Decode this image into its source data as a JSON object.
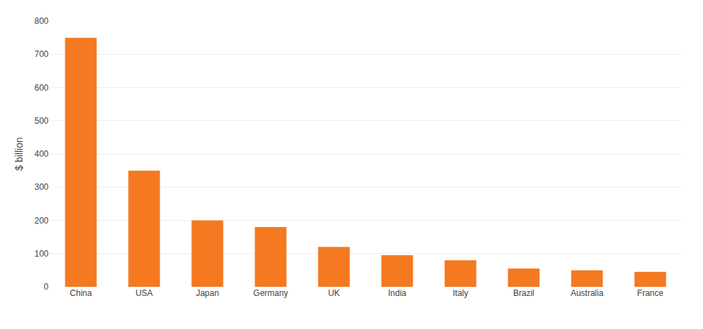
{
  "chart_data": {
    "type": "bar",
    "categories": [
      "China",
      "USA",
      "Japan",
      "Germany",
      "UK",
      "India",
      "Italy",
      "Brazil",
      "Australia",
      "France"
    ],
    "values": [
      750,
      350,
      200,
      180,
      120,
      95,
      80,
      55,
      50,
      45
    ],
    "color": "#f47920",
    "ylabel": "$ billion",
    "ylim": [
      0,
      800
    ],
    "yticks": [
      0,
      100,
      200,
      300,
      400,
      500,
      600,
      700,
      800
    ],
    "grid": true
  }
}
